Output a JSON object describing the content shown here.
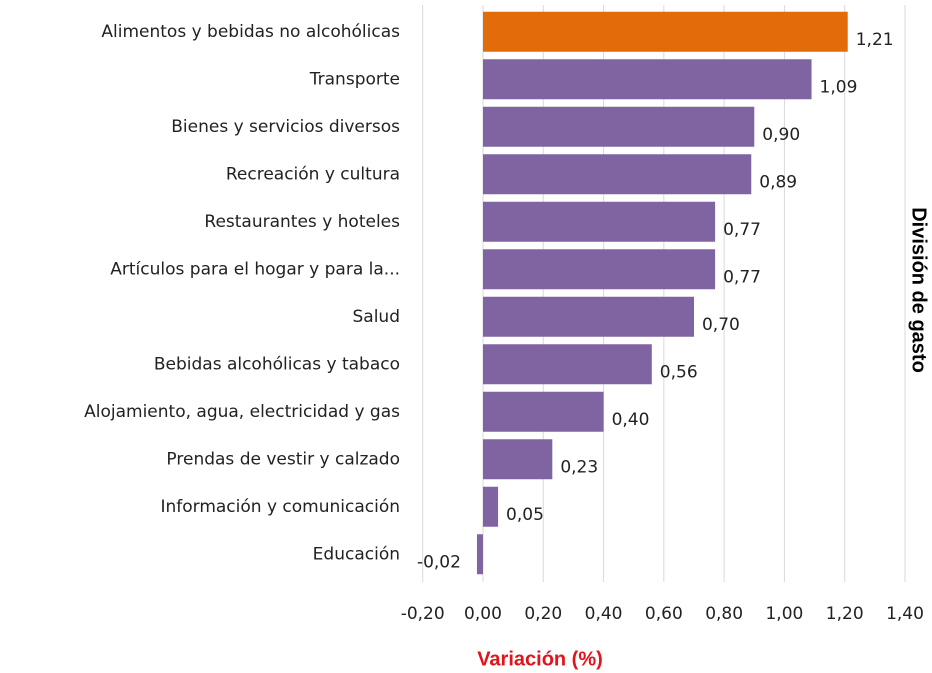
{
  "chart_data": {
    "type": "barh",
    "categories": [
      "Alimentos y bebidas no alcohólicas",
      "Transporte",
      "Bienes y servicios diversos",
      "Recreación y cultura",
      "Restaurantes y hoteles",
      "Artículos para el hogar y para la...",
      "Salud",
      "Bebidas alcohólicas y tabaco",
      "Alojamiento, agua, electricidad y gas",
      "Prendas de vestir y calzado",
      "Información y comunicación",
      "Educación"
    ],
    "values": [
      1.21,
      1.09,
      0.9,
      0.89,
      0.77,
      0.77,
      0.7,
      0.56,
      0.4,
      0.23,
      0.05,
      -0.02
    ],
    "value_labels": [
      "1,21",
      "1,09",
      "0,90",
      "0,89",
      "0,77",
      "0,77",
      "0,70",
      "0,56",
      "0,40",
      "0,23",
      "0,05",
      "-0,02"
    ],
    "colors": [
      "#e36c0a",
      "#8064a2",
      "#8064a2",
      "#8064a2",
      "#8064a2",
      "#8064a2",
      "#8064a2",
      "#8064a2",
      "#8064a2",
      "#8064a2",
      "#8064a2",
      "#8064a2"
    ],
    "xlabel": "Variación (%)",
    "ylabel": "División de gasto",
    "xlim": [
      -0.2,
      1.4
    ],
    "xticks": [
      {
        "value": -0.2,
        "label": "-0,20"
      },
      {
        "value": 0,
        "label": "0,00"
      },
      {
        "value": 0.2,
        "label": "0,20"
      },
      {
        "value": 0.4,
        "label": "0,40"
      },
      {
        "value": 0.6,
        "label": "0,60"
      },
      {
        "value": 0.8,
        "label": "0,80"
      },
      {
        "value": 1.0,
        "label": "1,00"
      },
      {
        "value": 1.2,
        "label": "1,20"
      },
      {
        "value": 1.4,
        "label": "1,40"
      }
    ],
    "grid": true
  }
}
